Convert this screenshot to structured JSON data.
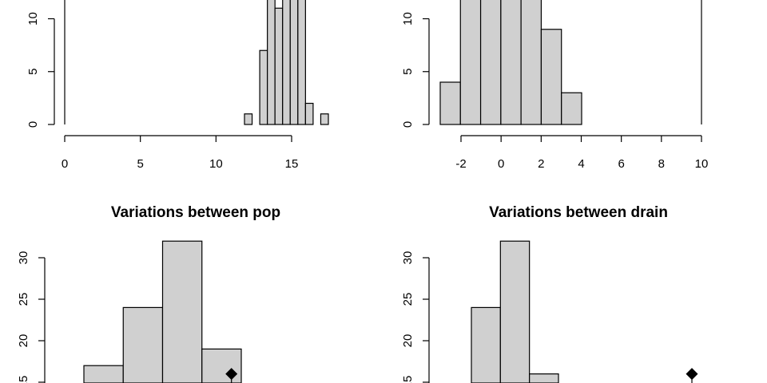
{
  "chart_data": [
    {
      "type": "bar",
      "title": "",
      "xlabel": "",
      "ylabel": "",
      "xlim": [
        0,
        17.5
      ],
      "ylim": [
        0,
        12
      ],
      "x_ticks": [
        "0",
        "5",
        "10",
        "15"
      ],
      "y_ticks": [
        "0",
        "5",
        "10"
      ],
      "bins": [
        {
          "from": 12,
          "to": 12.5,
          "count": 1
        },
        {
          "from": 12.5,
          "to": 13,
          "count": 0
        },
        {
          "from": 13,
          "to": 13.5,
          "count": 7
        },
        {
          "from": 13.5,
          "to": 14,
          "count": 12
        },
        {
          "from": 14,
          "to": 14.5,
          "count": 11
        },
        {
          "from": 14.5,
          "to": 15,
          "count": 12
        },
        {
          "from": 15,
          "to": 15.5,
          "count": 12
        },
        {
          "from": 15.5,
          "to": 16,
          "count": 12
        },
        {
          "from": 16,
          "to": 16.5,
          "count": 2
        },
        {
          "from": 16.5,
          "to": 17,
          "count": 0
        },
        {
          "from": 17,
          "to": 17.5,
          "count": 1
        }
      ]
    },
    {
      "type": "bar",
      "title": "",
      "xlabel": "",
      "ylabel": "",
      "xlim": [
        -3,
        10
      ],
      "ylim": [
        0,
        12
      ],
      "x_ticks": [
        "-2",
        "0",
        "2",
        "4",
        "6",
        "8",
        "10"
      ],
      "y_ticks": [
        "0",
        "5",
        "10"
      ],
      "bins": [
        {
          "from": -3,
          "to": -2,
          "count": 4
        },
        {
          "from": -2,
          "to": -1,
          "count": 12
        },
        {
          "from": -1,
          "to": 0,
          "count": 12
        },
        {
          "from": 0,
          "to": 1,
          "count": 12
        },
        {
          "from": 1,
          "to": 2,
          "count": 12
        },
        {
          "from": 2,
          "to": 3,
          "count": 9
        },
        {
          "from": 3,
          "to": 4,
          "count": 3
        }
      ]
    },
    {
      "type": "bar",
      "title": "Variations between pop",
      "xlabel": "",
      "ylabel": "",
      "ylim": [
        0,
        32
      ],
      "y_ticks": [
        "15",
        "20",
        "25",
        "30"
      ],
      "bins": [
        {
          "from": 0,
          "to": 1,
          "count": 17
        },
        {
          "from": 1,
          "to": 2,
          "count": 24
        },
        {
          "from": 2,
          "to": 3,
          "count": 32
        },
        {
          "from": 3,
          "to": 4,
          "count": 19
        }
      ],
      "observed_marker": {
        "x": 3.75,
        "y": 16
      }
    },
    {
      "type": "bar",
      "title": "Variations between drain",
      "xlabel": "",
      "ylabel": "",
      "ylim": [
        0,
        32
      ],
      "y_ticks": [
        "15",
        "20",
        "25",
        "30"
      ],
      "bins": [
        {
          "from": 0,
          "to": 1,
          "count": 24
        },
        {
          "from": 1,
          "to": 2,
          "count": 32
        },
        {
          "from": 2,
          "to": 3,
          "count": 16
        }
      ],
      "observed_marker": {
        "x": 7.7,
        "y": 16
      }
    }
  ]
}
